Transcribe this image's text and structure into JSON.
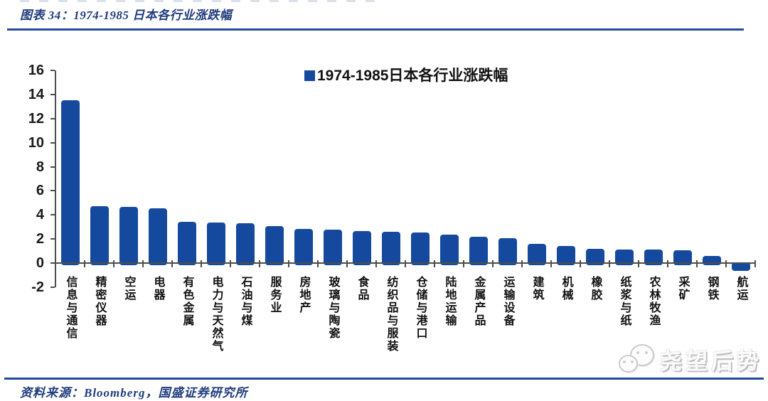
{
  "page": {
    "title": "图表 34：1974-1985 日本各行业涨跌幅",
    "source": "资料来源：Bloomberg，国盛证券研究所",
    "watermark": "尧望后势"
  },
  "colors": {
    "title_navy": "#1f3c7d",
    "rule_navy": "#2449a2",
    "bar_blue": "#14499e",
    "axis_gray": "#4d4d4d",
    "label_black": "#111111"
  },
  "chart_data": {
    "type": "bar",
    "legend": "1974-1985日本各行业涨跌幅",
    "legend_position": "top-center",
    "grid": false,
    "ylim": [
      -2,
      16
    ],
    "yticks": [
      16,
      14,
      12,
      10,
      8,
      6,
      4,
      2,
      0,
      -2
    ],
    "xlabel": "",
    "ylabel": "",
    "categories": [
      "信息与通信",
      "精密仪器",
      "空运",
      "电器",
      "有色金属",
      "电力与天然气",
      "石油与煤",
      "服务业",
      "房地产",
      "玻璃与陶瓷",
      "食品",
      "纺织品与服装",
      "仓储与港口",
      "陆地运输",
      "金属产品",
      "运输设备",
      "建筑",
      "机械",
      "橡胶",
      "纸浆与纸",
      "农林牧渔",
      "采矿",
      "钢铁",
      "航运"
    ],
    "values": [
      13.5,
      4.7,
      4.65,
      4.55,
      3.45,
      3.4,
      3.3,
      3.1,
      2.85,
      2.8,
      2.65,
      2.6,
      2.55,
      2.35,
      2.2,
      2.1,
      1.6,
      1.45,
      1.2,
      1.15,
      1.1,
      1.05,
      0.6,
      -0.5
    ]
  }
}
